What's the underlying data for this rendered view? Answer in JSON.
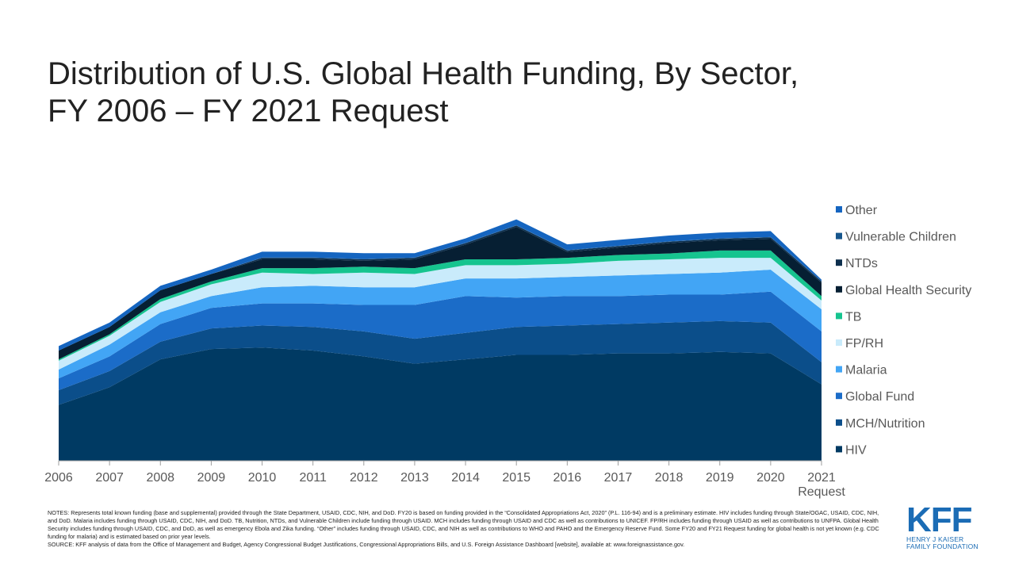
{
  "title": {
    "line1": "Distribution of U.S. Global Health Funding, By Sector,",
    "line2": "FY 2006 – FY 2021 Request"
  },
  "chart_data": {
    "type": "area",
    "stacked": true,
    "x": [
      "2006",
      "2007",
      "2008",
      "2009",
      "2010",
      "2011",
      "2012",
      "2013",
      "2014",
      "2015",
      "2016",
      "2017",
      "2018",
      "2019",
      "2020",
      "2021"
    ],
    "x_tick_sublabels": {
      "2021": "Request"
    },
    "y_axis_visible": false,
    "grid": false,
    "legend_position": "right",
    "series": [
      {
        "name": "HIV",
        "color": "#003a63",
        "values": [
          3.8,
          5.0,
          6.9,
          7.6,
          7.7,
          7.5,
          7.1,
          6.6,
          6.9,
          7.2,
          7.2,
          7.3,
          7.3,
          7.4,
          7.3,
          5.2
        ]
      },
      {
        "name": "MCH/Nutrition",
        "color": "#0b4e8a",
        "values": [
          1.0,
          1.1,
          1.2,
          1.4,
          1.5,
          1.6,
          1.7,
          1.7,
          1.8,
          1.9,
          2.0,
          2.0,
          2.1,
          2.1,
          2.1,
          1.5
        ]
      },
      {
        "name": "Global Fund",
        "color": "#1b6cc8",
        "values": [
          0.8,
          1.0,
          1.2,
          1.4,
          1.5,
          1.6,
          1.8,
          2.3,
          2.5,
          2.0,
          2.0,
          1.9,
          1.9,
          1.8,
          2.1,
          2.1
        ]
      },
      {
        "name": "Malaria",
        "color": "#42a5f5",
        "values": [
          0.6,
          0.8,
          0.8,
          0.8,
          1.1,
          1.2,
          1.2,
          1.2,
          1.2,
          1.3,
          1.3,
          1.4,
          1.4,
          1.5,
          1.5,
          1.5
        ]
      },
      {
        "name": "FP/RH",
        "color": "#c9ebfb",
        "values": [
          0.6,
          0.6,
          0.7,
          0.8,
          1.0,
          0.8,
          1.0,
          0.9,
          0.9,
          0.9,
          0.9,
          1.0,
          1.0,
          1.0,
          0.8,
          0.6
        ]
      },
      {
        "name": "TB",
        "color": "#16c48f",
        "values": [
          0.1,
          0.1,
          0.2,
          0.2,
          0.3,
          0.4,
          0.4,
          0.4,
          0.4,
          0.4,
          0.4,
          0.4,
          0.4,
          0.5,
          0.5,
          0.3
        ]
      },
      {
        "name": "Global Health Security",
        "color": "#061f33",
        "values": [
          0.6,
          0.5,
          0.6,
          0.5,
          0.6,
          0.6,
          0.4,
          0.6,
          1.0,
          2.2,
          0.4,
          0.5,
          0.7,
          0.7,
          0.8,
          0.9
        ]
      },
      {
        "name": "NTDs",
        "color": "#0d2f4d",
        "values": [
          0.0,
          0.0,
          0.0,
          0.0,
          0.1,
          0.1,
          0.1,
          0.1,
          0.1,
          0.1,
          0.1,
          0.1,
          0.1,
          0.1,
          0.1,
          0.1
        ]
      },
      {
        "name": "Vulnerable Children",
        "color": "#17568c",
        "values": [
          0.0,
          0.0,
          0.0,
          0.0,
          0.02,
          0.02,
          0.02,
          0.02,
          0.02,
          0.02,
          0.02,
          0.02,
          0.02,
          0.02,
          0.02,
          0.02
        ]
      },
      {
        "name": "Other",
        "color": "#1565c0",
        "values": [
          0.3,
          0.3,
          0.3,
          0.3,
          0.4,
          0.4,
          0.4,
          0.3,
          0.3,
          0.4,
          0.4,
          0.4,
          0.4,
          0.4,
          0.4,
          0.1
        ]
      }
    ],
    "ylim": [
      0,
      17.8
    ]
  },
  "footer": {
    "notes": "NOTES: Represents total known funding (base and supplemental) provided through the State Department, USAID, CDC, NIH, and DoD. FY20 is based on funding provided in the “Consolidated Appropriations Act, 2020” (P.L. 116-94) and is a preliminary estimate. HIV includes funding through State/OGAC, USAID, CDC, NIH, and DoD. Malaria includes funding through USAID, CDC, NIH, and DoD. TB, Nutrition, NTDs, and Vulnerable Children include funding through USAID. MCH includes funding through USAID and CDC as well as contributions to UNICEF. FP/RH includes funding through USAID as well as contributions to UNFPA. Global Health Security includes funding through USAID, CDC, and DoD, as well as emergency Ebola and Zika funding. “Other” includes funding through USAID, CDC, and NIH as well as contributions to WHO and PAHO and the Emergency Reserve Fund. Some FY20 and FY21 Request funding for global health is not yet known (e.g. CDC funding for malaria) and is estimated based on prior year levels.",
    "source": "SOURCE: KFF analysis of data from the Office of Management and Budget, Agency Congressional Budget Justifications, Congressional Appropriations Bills, and U.S. Foreign Assistance Dashboard [website], available at: www.foreignassistance.gov."
  },
  "logo": {
    "mark": "KFF",
    "line1": "HENRY J KAISER",
    "line2": "FAMILY FOUNDATION",
    "color": "#1b6cb5"
  }
}
